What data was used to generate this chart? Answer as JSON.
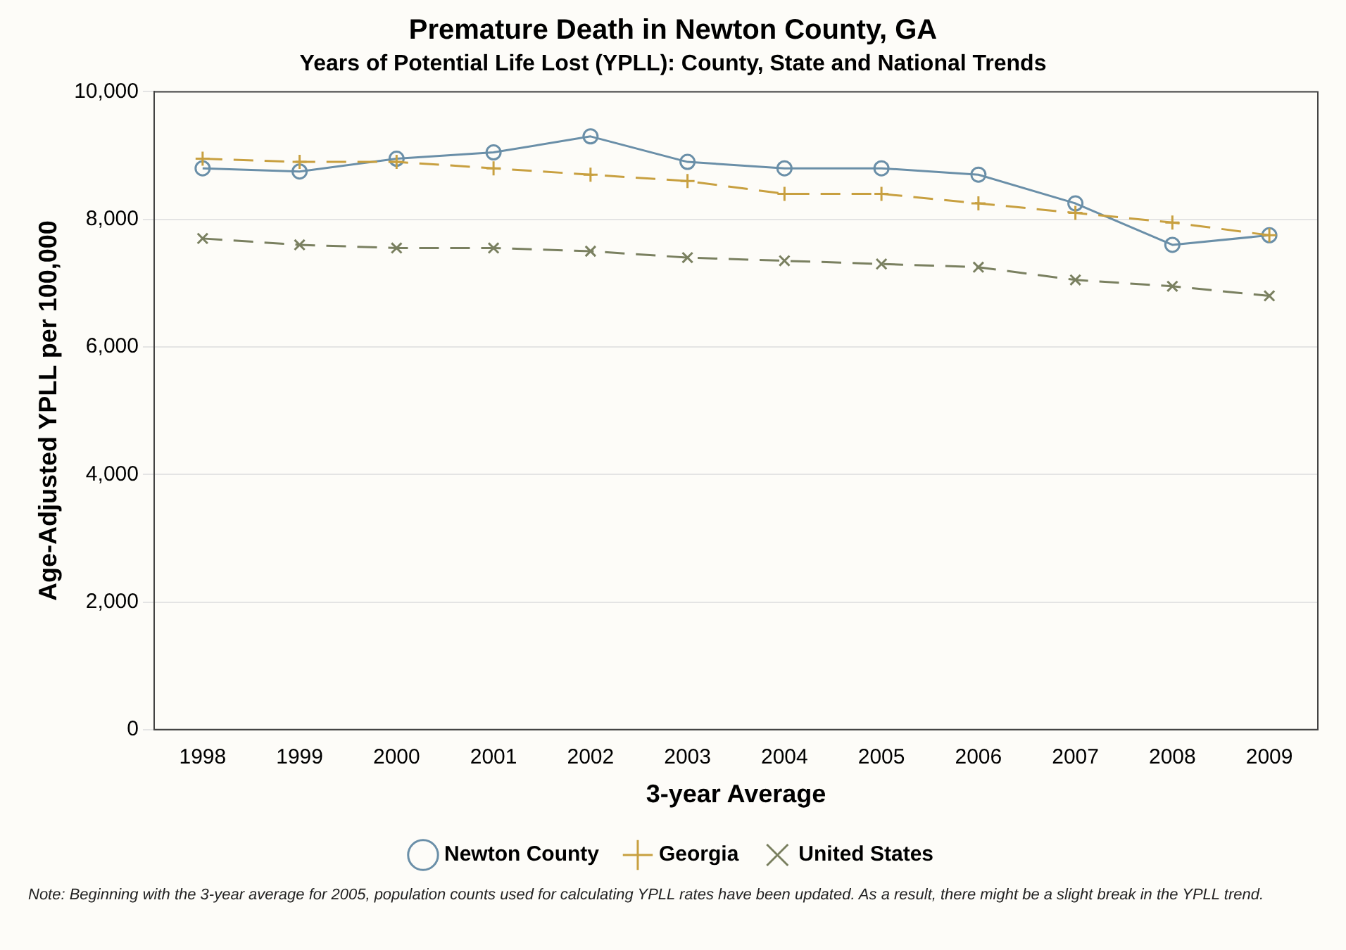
{
  "chart_data": {
    "type": "line",
    "title": "Premature Death in Newton County, GA",
    "subtitle": "Years of Potential Life Lost (YPLL): County, State and National Trends",
    "xlabel": "3-year Average",
    "ylabel": "Age-Adjusted YPLL per 100,000",
    "categories": [
      "1998",
      "1999",
      "2000",
      "2001",
      "2002",
      "2003",
      "2004",
      "2005",
      "2006",
      "2007",
      "2008",
      "2009"
    ],
    "series": [
      {
        "name": "Newton County",
        "color": "#6a8fa8",
        "marker": "circle",
        "line_style": "solid",
        "values": [
          8800,
          8750,
          8950,
          9050,
          9300,
          8900,
          8800,
          8800,
          8700,
          8250,
          7600,
          7750
        ]
      },
      {
        "name": "Georgia",
        "color": "#c8a040",
        "marker": "plus",
        "line_style": "dashed",
        "values": [
          8950,
          8900,
          8900,
          8800,
          8700,
          8600,
          8400,
          8400,
          8250,
          8100,
          7950,
          7750
        ]
      },
      {
        "name": "United States",
        "color": "#7a8060",
        "marker": "cross",
        "line_style": "dashed",
        "values": [
          7700,
          7600,
          7550,
          7550,
          7500,
          7400,
          7350,
          7300,
          7250,
          7050,
          6950,
          6800
        ]
      }
    ],
    "ylim": [
      0,
      10000
    ],
    "yticks": [
      {
        "value": 0,
        "label": "0"
      },
      {
        "value": 2000,
        "label": "2,000"
      },
      {
        "value": 4000,
        "label": "4,000"
      },
      {
        "value": 6000,
        "label": "6,000"
      },
      {
        "value": 8000,
        "label": "8,000"
      },
      {
        "value": 10000,
        "label": "10,000"
      }
    ],
    "grid": "y",
    "legend": "bottom",
    "annotations": [
      "Note: Beginning with the 3-year average for 2005, population counts used for calculating YPLL rates have been updated. As a result, there might be a slight break in the YPLL trend."
    ]
  }
}
